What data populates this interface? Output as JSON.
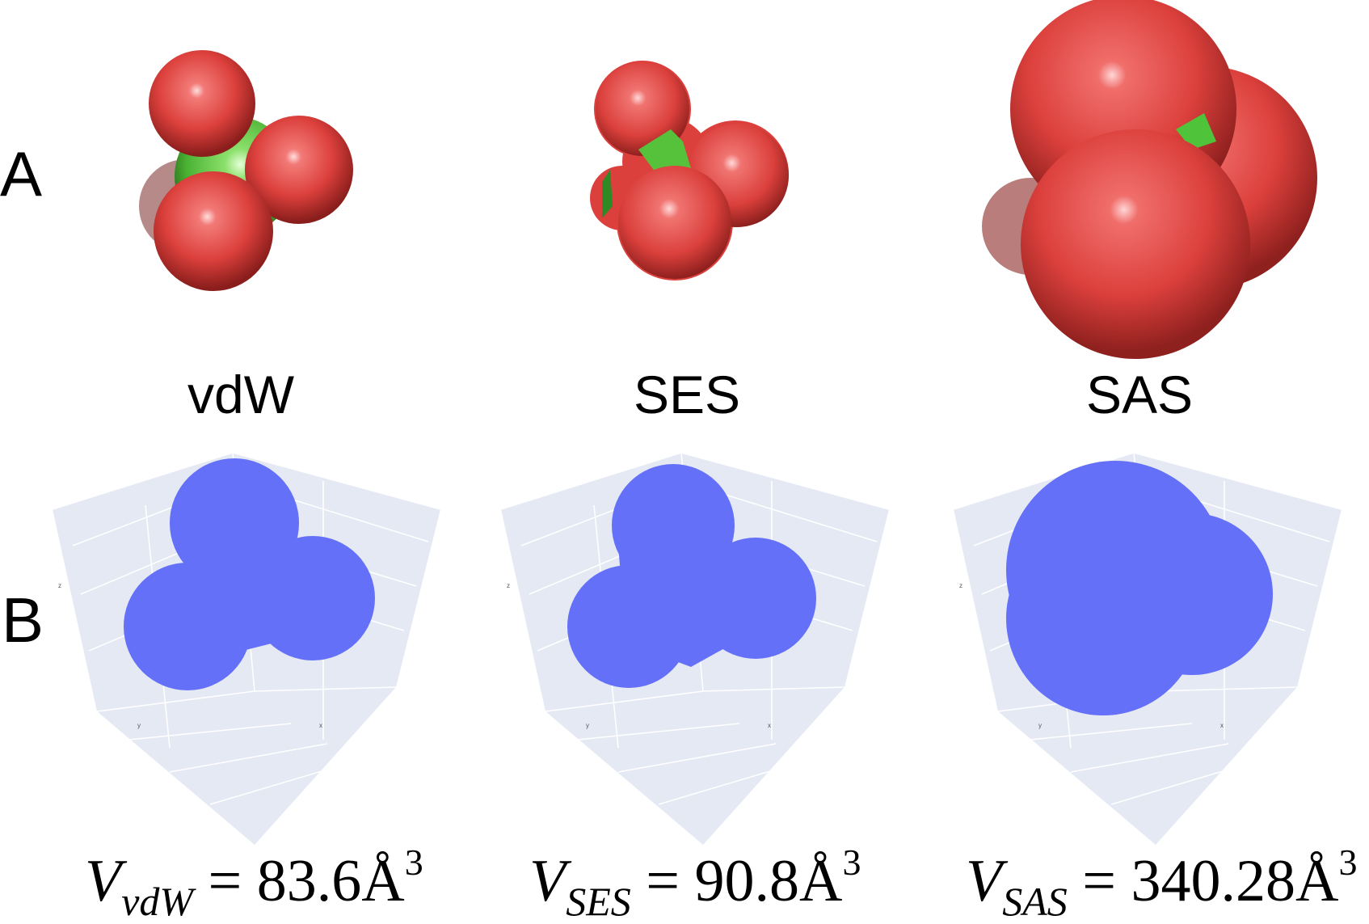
{
  "rows": {
    "a": "A",
    "b": "B"
  },
  "surfaces": [
    {
      "label": "vdW",
      "volume": {
        "symbol": "V",
        "subscript": "vdW",
        "value": "= 83.6Å",
        "exponent": "3"
      }
    },
    {
      "label": "SES",
      "volume": {
        "symbol": "V",
        "subscript": "SES",
        "value": "= 90.8Å",
        "exponent": "3"
      }
    },
    {
      "label": "SAS",
      "volume": {
        "symbol": "V",
        "subscript": "SAS",
        "value": "= 340.28Å",
        "exponent": "3"
      }
    }
  ],
  "axis_letters": {
    "x": "x",
    "y": "y",
    "z": "z"
  },
  "colors": {
    "oxygen": "#e0403d",
    "core": "#4fc43a",
    "projection": "#6470f8",
    "scene_bg": "#e5e9f4",
    "grid": "#ffffff"
  }
}
